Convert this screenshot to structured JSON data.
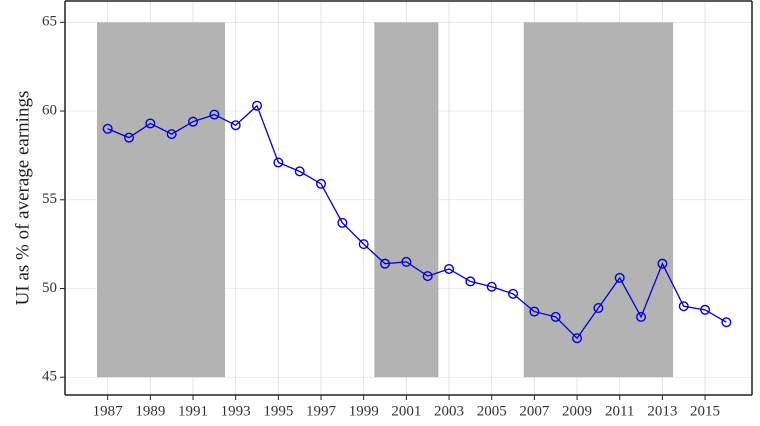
{
  "chart_data": {
    "type": "line",
    "y_label": "UI as % of average earnings",
    "x": [
      1987,
      1988,
      1989,
      1990,
      1991,
      1992,
      1993,
      1994,
      1995,
      1996,
      1997,
      1998,
      1999,
      2000,
      2001,
      2002,
      2003,
      2004,
      2005,
      2006,
      2007,
      2008,
      2009,
      2010,
      2011,
      2012,
      2013,
      2014,
      2015,
      2016
    ],
    "values": [
      59.0,
      58.5,
      59.3,
      58.7,
      59.4,
      59.8,
      59.2,
      60.3,
      57.1,
      56.6,
      55.9,
      53.7,
      52.5,
      51.4,
      51.5,
      50.7,
      51.1,
      50.4,
      50.1,
      49.7,
      48.7,
      48.4,
      47.2,
      48.9,
      50.6,
      48.4,
      51.4,
      49.0,
      48.8,
      48.1
    ],
    "color": "#0000dd",
    "shaded_regions": [
      [
        1986.5,
        1992.5
      ],
      [
        1999.5,
        2002.5
      ],
      [
        2006.5,
        2013.5
      ]
    ],
    "shaded_ylim": [
      45,
      65
    ],
    "shade_color": "#b3b3b3",
    "xlim": [
      1985,
      2017.2
    ],
    "ylim": [
      44,
      66.2
    ],
    "xticks": [
      1987,
      1989,
      1991,
      1993,
      1995,
      1997,
      1999,
      2001,
      2003,
      2005,
      2007,
      2009,
      2011,
      2013,
      2015
    ],
    "yticks": [
      45,
      50,
      55,
      60,
      65
    ],
    "grid": true
  }
}
